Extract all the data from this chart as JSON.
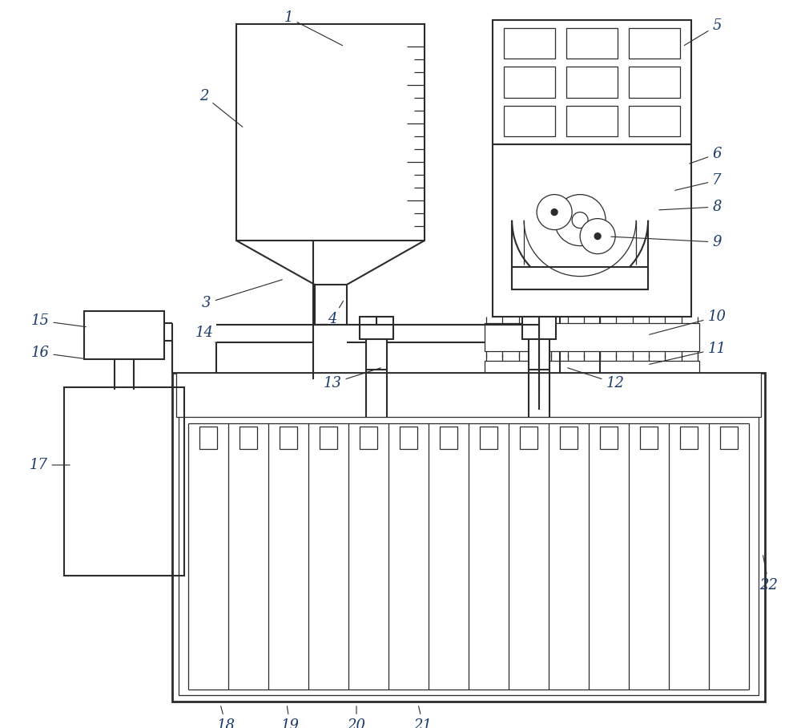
{
  "bg": "#ffffff",
  "lc": "#2c2c2c",
  "lblc": "#1a3a6b",
  "lw": 1.5,
  "tlw": 0.9,
  "fs": 13
}
